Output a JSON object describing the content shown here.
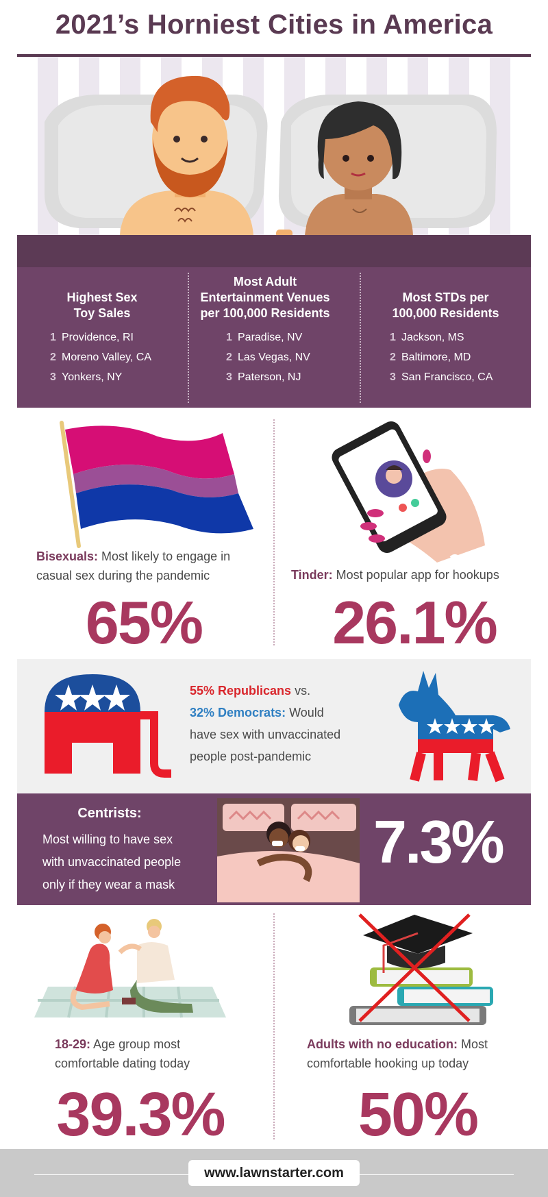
{
  "header": {
    "title": "2021’s Horniest Cities in America"
  },
  "cities": {
    "columns": [
      {
        "heading_line1": "Highest Sex",
        "heading_line2": "Toy Sales",
        "heading_line3": "",
        "items": [
          {
            "rank": "1",
            "city": "Providence, RI"
          },
          {
            "rank": "2",
            "city": "Moreno Valley, CA"
          },
          {
            "rank": "3",
            "city": "Yonkers, NY"
          }
        ]
      },
      {
        "heading_line1": "Most Adult",
        "heading_line2": "Entertainment Venues",
        "heading_line3": "per 100,000 Residents",
        "items": [
          {
            "rank": "1",
            "city": "Paradise, NV"
          },
          {
            "rank": "2",
            "city": "Las Vegas, NV"
          },
          {
            "rank": "3",
            "city": "Paterson, NJ"
          }
        ]
      },
      {
        "heading_line1": "Most STDs per",
        "heading_line2": "100,000 Residents",
        "heading_line3": "",
        "items": [
          {
            "rank": "1",
            "city": "Jackson, MS"
          },
          {
            "rank": "2",
            "city": "Baltimore, MD"
          },
          {
            "rank": "3",
            "city": "San Francisco, CA"
          }
        ]
      }
    ]
  },
  "stats": {
    "bisexual": {
      "label": "Bisexuals:",
      "line1": " Most likely to engage in",
      "line2": "casual sex during the pandemic",
      "value": "65%"
    },
    "tinder": {
      "label": "Tinder:",
      "line1": " Most popular app for hookups",
      "value": "26.1%"
    },
    "age": {
      "label": "18-29:",
      "line1": " Age group most",
      "line2": "comfortable dating today",
      "value": "39.3%"
    },
    "education": {
      "label": "Adults with no education:",
      "line1": " Most",
      "line2": "comfortable hooking up today",
      "value": "50%"
    }
  },
  "politics": {
    "rep_label": "55% Republicans",
    "vs": " vs.",
    "dem_label": "32% Democrats:",
    "dem_tail": " Would",
    "line3": "have sex with unvaccinated",
    "line4": "people post-pandemic"
  },
  "centrists": {
    "title": "Centrists:",
    "line1": "Most willing to have sex",
    "line2": "with unvaccinated people",
    "line3": "only if they wear a mask",
    "value": "7.3%"
  },
  "footer": {
    "url": "www.lawnstarter.com"
  },
  "icons": [
    "bedroom-couple-illustration",
    "bisexual-flag-icon",
    "phone-tinder-icon",
    "elephant-icon",
    "donkey-icon",
    "masked-couple-illustration",
    "picnic-couple-illustration",
    "graduation-cap-books-icon"
  ],
  "colors": {
    "plum": "#6f4468",
    "stat": "#a8385f",
    "republican": "#d9262c",
    "democrat": "#2f7fc2"
  }
}
